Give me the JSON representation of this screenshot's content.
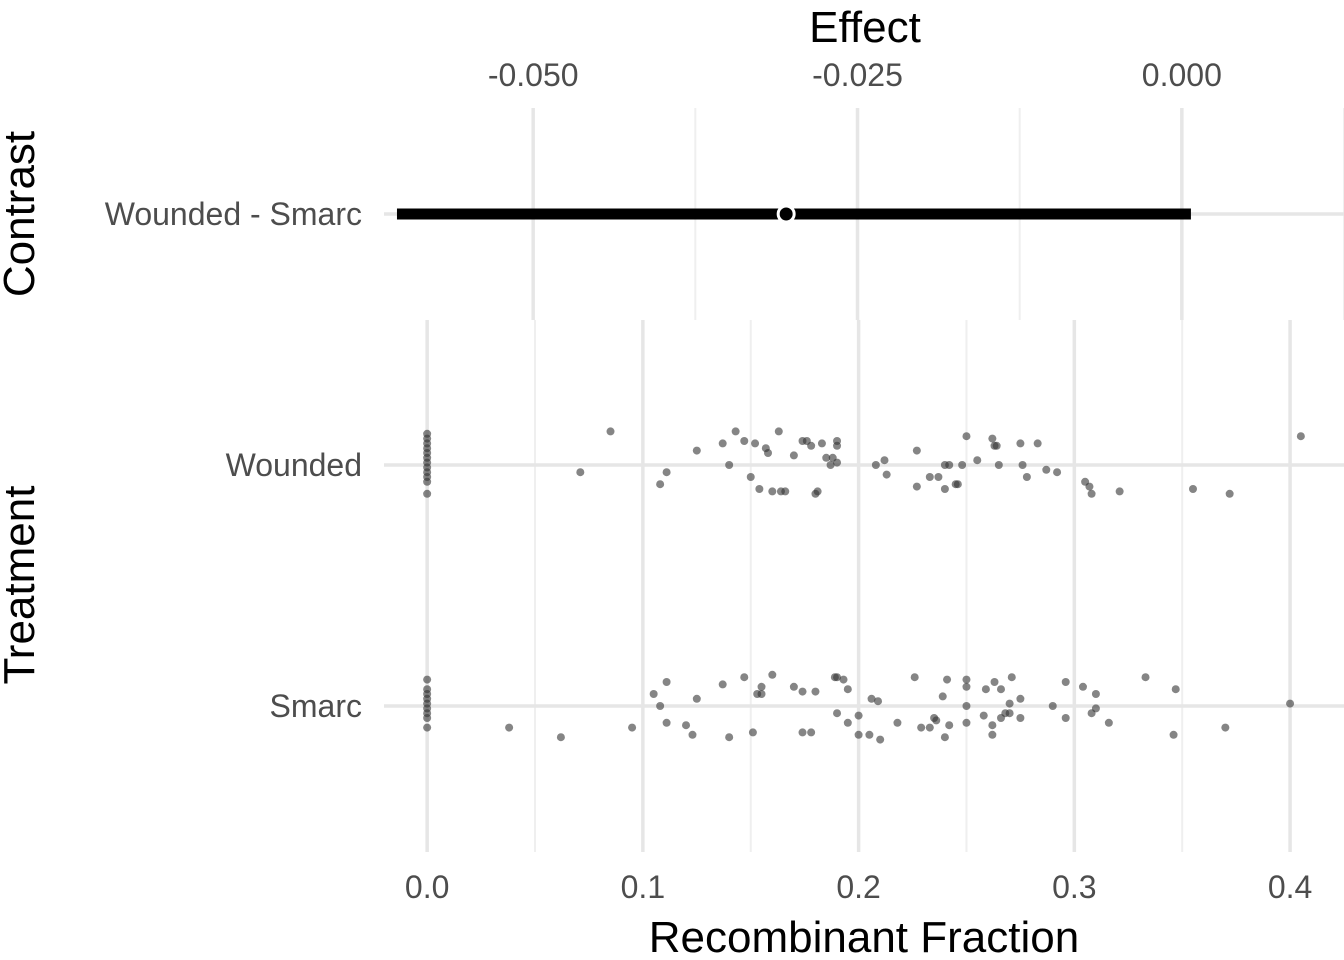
{
  "chart_data": [
    {
      "type": "scatter",
      "panel": "top",
      "xlabel": "Effect",
      "ylabel": "Contrast",
      "xlim": [
        -0.0615,
        0.0125
      ],
      "x_ticks": [
        -0.05,
        -0.025,
        0.0
      ],
      "x_tick_labels": [
        "-0.050",
        "-0.025",
        "0.000"
      ],
      "x_axis_position": "top",
      "categories": [
        "Wounded - Smarc"
      ],
      "estimate": -0.0305,
      "ci": [
        -0.0605,
        0.0007
      ],
      "grid": true
    },
    {
      "type": "scatter",
      "panel": "bottom",
      "xlabel": "Recombinant Fraction",
      "ylabel": "Treatment",
      "xlim": [
        -0.02,
        0.425
      ],
      "x_ticks": [
        0.0,
        0.1,
        0.2,
        0.3,
        0.4
      ],
      "x_tick_labels": [
        "0.0",
        "0.1",
        "0.2",
        "0.3",
        "0.4"
      ],
      "categories": [
        "Wounded",
        "Smarc"
      ],
      "point_color": "#333333",
      "grid": true,
      "series": [
        {
          "name": "Wounded",
          "points": [
            [
              0,
              0.13
            ],
            [
              0,
              0.11
            ],
            [
              0,
              0.09
            ],
            [
              0,
              0.07
            ],
            [
              0,
              0.05
            ],
            [
              0,
              0.03
            ],
            [
              0,
              0.01
            ],
            [
              0,
              -0.01
            ],
            [
              0,
              -0.03
            ],
            [
              0,
              -0.05
            ],
            [
              0,
              -0.07
            ],
            [
              0,
              -0.12
            ],
            [
              0.071,
              -0.03
            ],
            [
              0.085,
              0.14
            ],
            [
              0.108,
              -0.08
            ],
            [
              0.111,
              -0.03
            ],
            [
              0.125,
              0.06
            ],
            [
              0.137,
              0.09
            ],
            [
              0.14,
              0.0
            ],
            [
              0.143,
              0.14
            ],
            [
              0.147,
              0.1
            ],
            [
              0.15,
              -0.05
            ],
            [
              0.152,
              0.09
            ],
            [
              0.154,
              -0.1
            ],
            [
              0.157,
              0.07
            ],
            [
              0.158,
              0.05
            ],
            [
              0.16,
              -0.11
            ],
            [
              0.163,
              0.14
            ],
            [
              0.164,
              -0.11
            ],
            [
              0.166,
              -0.11
            ],
            [
              0.17,
              0.04
            ],
            [
              0.174,
              0.1
            ],
            [
              0.176,
              0.1
            ],
            [
              0.178,
              0.08
            ],
            [
              0.18,
              -0.12
            ],
            [
              0.181,
              -0.11
            ],
            [
              0.183,
              0.09
            ],
            [
              0.185,
              0.03
            ],
            [
              0.187,
              0.0
            ],
            [
              0.188,
              0.03
            ],
            [
              0.19,
              0.1
            ],
            [
              0.19,
              0.08
            ],
            [
              0.19,
              0.01
            ],
            [
              0.208,
              0.0
            ],
            [
              0.212,
              0.02
            ],
            [
              0.213,
              -0.04
            ],
            [
              0.227,
              -0.09
            ],
            [
              0.227,
              0.06
            ],
            [
              0.233,
              -0.05
            ],
            [
              0.237,
              -0.05
            ],
            [
              0.24,
              0.0
            ],
            [
              0.24,
              -0.1
            ],
            [
              0.242,
              0.0
            ],
            [
              0.245,
              -0.08
            ],
            [
              0.246,
              -0.08
            ],
            [
              0.248,
              0.0
            ],
            [
              0.25,
              0.12
            ],
            [
              0.255,
              0.02
            ],
            [
              0.262,
              0.11
            ],
            [
              0.263,
              0.08
            ],
            [
              0.264,
              0.08
            ],
            [
              0.265,
              0.0
            ],
            [
              0.275,
              0.09
            ],
            [
              0.276,
              0.0
            ],
            [
              0.278,
              -0.05
            ],
            [
              0.283,
              0.09
            ],
            [
              0.287,
              -0.02
            ],
            [
              0.292,
              -0.03
            ],
            [
              0.305,
              -0.07
            ],
            [
              0.307,
              -0.09
            ],
            [
              0.308,
              -0.12
            ],
            [
              0.321,
              -0.11
            ],
            [
              0.355,
              -0.1
            ],
            [
              0.372,
              -0.12
            ],
            [
              0.405,
              0.12
            ]
          ]
        },
        {
          "name": "Smarc",
          "points": [
            [
              0,
              0.11
            ],
            [
              0,
              0.07
            ],
            [
              0,
              0.05
            ],
            [
              0,
              0.03
            ],
            [
              0,
              0.01
            ],
            [
              0,
              -0.01
            ],
            [
              0,
              -0.03
            ],
            [
              0,
              -0.05
            ],
            [
              0,
              -0.09
            ],
            [
              0.038,
              -0.09
            ],
            [
              0.062,
              -0.13
            ],
            [
              0.095,
              -0.09
            ],
            [
              0.105,
              0.05
            ],
            [
              0.108,
              0.0
            ],
            [
              0.111,
              -0.07
            ],
            [
              0.111,
              0.1
            ],
            [
              0.12,
              -0.08
            ],
            [
              0.123,
              -0.12
            ],
            [
              0.125,
              0.03
            ],
            [
              0.137,
              0.09
            ],
            [
              0.14,
              -0.13
            ],
            [
              0.147,
              0.12
            ],
            [
              0.151,
              -0.11
            ],
            [
              0.153,
              0.05
            ],
            [
              0.155,
              0.05
            ],
            [
              0.155,
              0.08
            ],
            [
              0.16,
              0.13
            ],
            [
              0.17,
              0.08
            ],
            [
              0.174,
              0.06
            ],
            [
              0.174,
              -0.11
            ],
            [
              0.178,
              -0.11
            ],
            [
              0.18,
              0.06
            ],
            [
              0.189,
              0.12
            ],
            [
              0.19,
              0.12
            ],
            [
              0.19,
              -0.03
            ],
            [
              0.193,
              0.11
            ],
            [
              0.195,
              -0.07
            ],
            [
              0.195,
              0.07
            ],
            [
              0.2,
              -0.04
            ],
            [
              0.2,
              -0.12
            ],
            [
              0.205,
              -0.12
            ],
            [
              0.206,
              0.03
            ],
            [
              0.209,
              0.02
            ],
            [
              0.21,
              -0.14
            ],
            [
              0.218,
              -0.07
            ],
            [
              0.226,
              0.12
            ],
            [
              0.229,
              -0.09
            ],
            [
              0.233,
              -0.09
            ],
            [
              0.235,
              -0.05
            ],
            [
              0.236,
              -0.06
            ],
            [
              0.239,
              0.04
            ],
            [
              0.24,
              -0.13
            ],
            [
              0.241,
              0.11
            ],
            [
              0.242,
              -0.08
            ],
            [
              0.25,
              0.11
            ],
            [
              0.25,
              0.08
            ],
            [
              0.25,
              0.0
            ],
            [
              0.25,
              -0.07
            ],
            [
              0.258,
              -0.04
            ],
            [
              0.259,
              0.07
            ],
            [
              0.262,
              -0.12
            ],
            [
              0.262,
              -0.08
            ],
            [
              0.263,
              0.1
            ],
            [
              0.266,
              0.07
            ],
            [
              0.266,
              -0.05
            ],
            [
              0.268,
              -0.03
            ],
            [
              0.27,
              0.01
            ],
            [
              0.27,
              -0.03
            ],
            [
              0.271,
              0.12
            ],
            [
              0.275,
              0.03
            ],
            [
              0.275,
              -0.05
            ],
            [
              0.29,
              0.0
            ],
            [
              0.296,
              0.1
            ],
            [
              0.296,
              -0.05
            ],
            [
              0.304,
              0.08
            ],
            [
              0.308,
              -0.03
            ],
            [
              0.31,
              0.05
            ],
            [
              0.31,
              -0.01
            ],
            [
              0.316,
              -0.07
            ],
            [
              0.333,
              0.12
            ],
            [
              0.346,
              -0.12
            ],
            [
              0.347,
              0.07
            ],
            [
              0.37,
              -0.09
            ],
            [
              0.4,
              0.01
            ]
          ]
        }
      ]
    }
  ]
}
